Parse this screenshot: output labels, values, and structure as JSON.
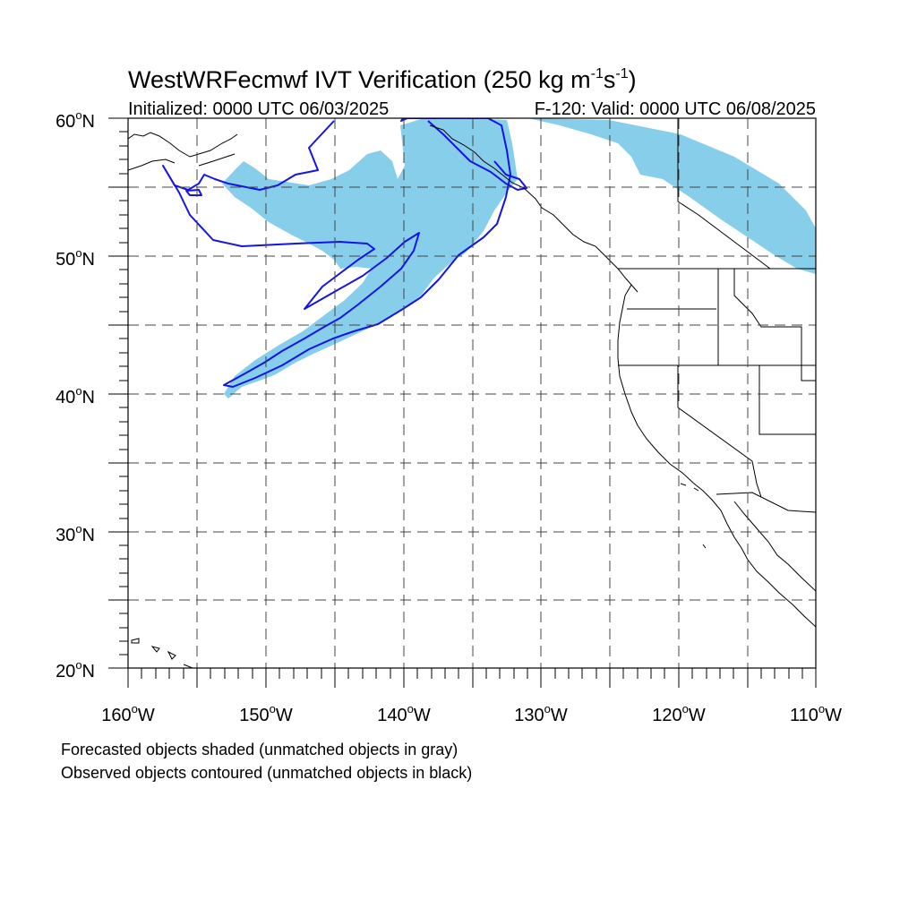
{
  "title": {
    "main": "WestWRFecmwf IVT Verification (250 kg m",
    "sup1": "-1",
    "mid": "s",
    "sup2": "-1",
    "end": ")"
  },
  "subtitle_left": "Initialized: 0000 UTC 06/03/2025",
  "subtitle_right": "F-120: Valid: 0000 UTC 06/08/2025",
  "map": {
    "lon_range": [
      -160,
      -110
    ],
    "lat_range": [
      20,
      60
    ],
    "grid_lines": "dashed",
    "lat_labels": [
      "20",
      "30",
      "40",
      "50",
      "60"
    ],
    "lat_suffix": "N",
    "lon_labels": [
      "160",
      "150",
      "140",
      "130",
      "120",
      "110"
    ],
    "lon_suffix": "W",
    "degree_symbol": "o"
  },
  "legend": {
    "line1": "Forecasted objects shaded (unmatched objects in gray)",
    "line2": "Observed objects contoured (unmatched objects in black)"
  },
  "colors": {
    "forecast_fill": "#87ceeb",
    "observed_contour": "#1414e6",
    "coastline": "#000000",
    "grid": "#444444"
  }
}
